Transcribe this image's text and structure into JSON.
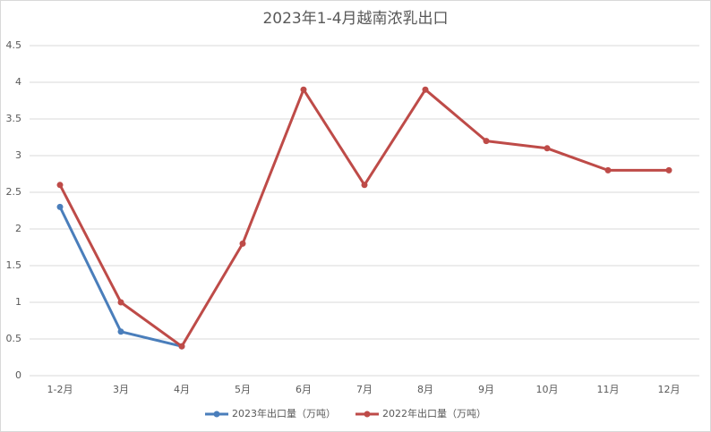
{
  "chart_data": {
    "type": "line",
    "title": "2023年1-4月越南浓乳出口",
    "categories": [
      "1-2月",
      "3月",
      "4月",
      "5月",
      "6月",
      "7月",
      "8月",
      "9月",
      "10月",
      "11月",
      "12月"
    ],
    "series": [
      {
        "name": "2023年出口量（万吨）",
        "color": "#4a7ebb",
        "values": [
          2.3,
          0.6,
          0.4,
          null,
          null,
          null,
          null,
          null,
          null,
          null,
          null
        ]
      },
      {
        "name": "2022年出口量（万吨）",
        "color": "#be4b48",
        "values": [
          2.6,
          1.0,
          0.4,
          1.8,
          3.9,
          2.6,
          3.9,
          3.2,
          3.1,
          2.8,
          2.8
        ]
      }
    ],
    "ylim": [
      0,
      4.5
    ],
    "yticks": [
      0,
      0.5,
      1,
      1.5,
      2,
      2.5,
      3,
      3.5,
      4,
      4.5
    ],
    "grid": true,
    "legend": "bottom"
  }
}
